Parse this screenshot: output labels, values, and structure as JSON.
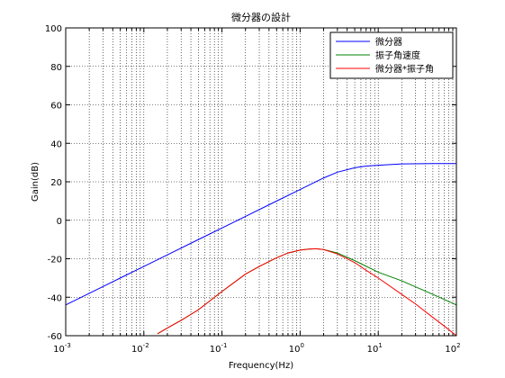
{
  "chart_data": {
    "type": "line",
    "title": "微分器の設計",
    "xlabel": "Frequency(Hz)",
    "ylabel": "Gain(dB)",
    "xscale": "log",
    "xlim": [
      0.001,
      100
    ],
    "ylim": [
      -60,
      100
    ],
    "grid": "minor-dotted",
    "legend_position": "top-right",
    "x_ticks": [
      0.001,
      0.01,
      0.1,
      1,
      10,
      100
    ],
    "x_tick_labels": [
      {
        "base": "10",
        "exp": "-3"
      },
      {
        "base": "10",
        "exp": "-2"
      },
      {
        "base": "10",
        "exp": "-1"
      },
      {
        "base": "10",
        "exp": "0"
      },
      {
        "base": "10",
        "exp": "1"
      },
      {
        "base": "10",
        "exp": "2"
      }
    ],
    "y_ticks": [
      -60,
      -40,
      -20,
      0,
      20,
      40,
      60,
      80,
      100
    ],
    "series": [
      {
        "name": "微分器",
        "color": "#0000ff",
        "x": [
          0.001,
          0.002,
          0.005,
          0.01,
          0.02,
          0.05,
          0.1,
          0.2,
          0.5,
          1,
          2,
          3,
          5,
          7,
          10,
          20,
          50,
          100
        ],
        "y": [
          -44,
          -38,
          -30,
          -24,
          -18,
          -10,
          -4,
          2,
          10,
          16,
          22,
          25,
          27.3,
          28.2,
          28.6,
          29.3,
          29.5,
          29.5
        ]
      },
      {
        "name": "振子角速度",
        "color": "#008000",
        "x": [
          0.015,
          0.02,
          0.03,
          0.05,
          0.1,
          0.2,
          0.3,
          0.5,
          0.7,
          1,
          1.3,
          1.6,
          2,
          3,
          5,
          10,
          20,
          50,
          100
        ],
        "y": [
          -59,
          -56,
          -52,
          -46.5,
          -37,
          -28,
          -24,
          -19.5,
          -17,
          -15.5,
          -15,
          -14.8,
          -15.2,
          -17,
          -21,
          -27,
          -31.5,
          -38.5,
          -44
        ]
      },
      {
        "name": "微分器*振子角",
        "color": "#ff0000",
        "x": [
          0.015,
          0.02,
          0.03,
          0.05,
          0.1,
          0.2,
          0.3,
          0.5,
          0.7,
          1,
          1.3,
          1.6,
          2,
          3,
          5,
          7,
          10,
          20,
          30,
          50,
          70,
          100
        ],
        "y": [
          -59,
          -56,
          -52,
          -46.5,
          -37,
          -28,
          -24,
          -19.5,
          -17,
          -15.5,
          -15,
          -14.8,
          -15.2,
          -17.5,
          -22,
          -26,
          -30,
          -38.5,
          -43.5,
          -50.5,
          -55,
          -60
        ]
      }
    ]
  }
}
